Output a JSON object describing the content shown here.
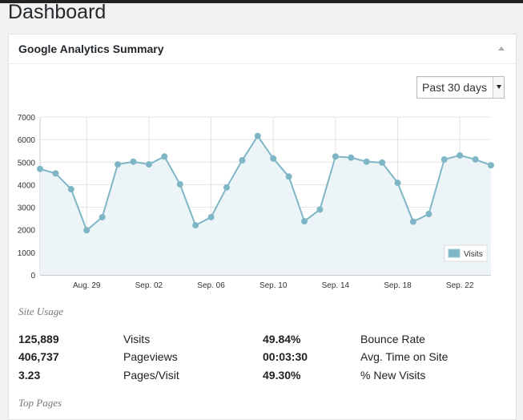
{
  "page": {
    "title": "Dashboard"
  },
  "widget": {
    "title": "Google Analytics Summary",
    "range_select": {
      "value": "Past 30 days"
    },
    "site_usage_heading": "Site Usage",
    "top_pages_heading": "Top Pages",
    "stats": [
      {
        "value": "125,889",
        "label": "Visits",
        "value2": "49.84%",
        "label2": "Bounce Rate"
      },
      {
        "value": "406,737",
        "label": "Pageviews",
        "value2": "00:03:30",
        "label2": "Avg. Time on Site"
      },
      {
        "value": "3.23",
        "label": "Pages/Visit",
        "value2": "49.30%",
        "label2": "% New Visits"
      }
    ]
  },
  "chart_data": {
    "type": "area",
    "title": "",
    "xlabel": "",
    "ylabel": "",
    "ylim": [
      0,
      7000
    ],
    "yticks": [
      0,
      1000,
      2000,
      3000,
      4000,
      5000,
      6000,
      7000
    ],
    "x_tick_labels": [
      "Aug. 29",
      "Sep. 02",
      "Sep. 06",
      "Sep. 10",
      "Sep. 14",
      "Sep. 18",
      "Sep. 22"
    ],
    "x_tick_indices": [
      3,
      7,
      11,
      15,
      19,
      23,
      27
    ],
    "grid": true,
    "legend_position": "bottom-right",
    "series": [
      {
        "name": "Visits",
        "color": "#7fb6c6",
        "fill": "#edf4f8",
        "values": [
          4700,
          4500,
          3800,
          1980,
          2560,
          4900,
          5020,
          4900,
          5250,
          4020,
          2200,
          2560,
          3880,
          5080,
          6160,
          5160,
          4360,
          2380,
          2900,
          5250,
          5200,
          5020,
          4980,
          4080,
          2360,
          2700,
          5120,
          5300,
          5120,
          4860
        ]
      }
    ]
  }
}
